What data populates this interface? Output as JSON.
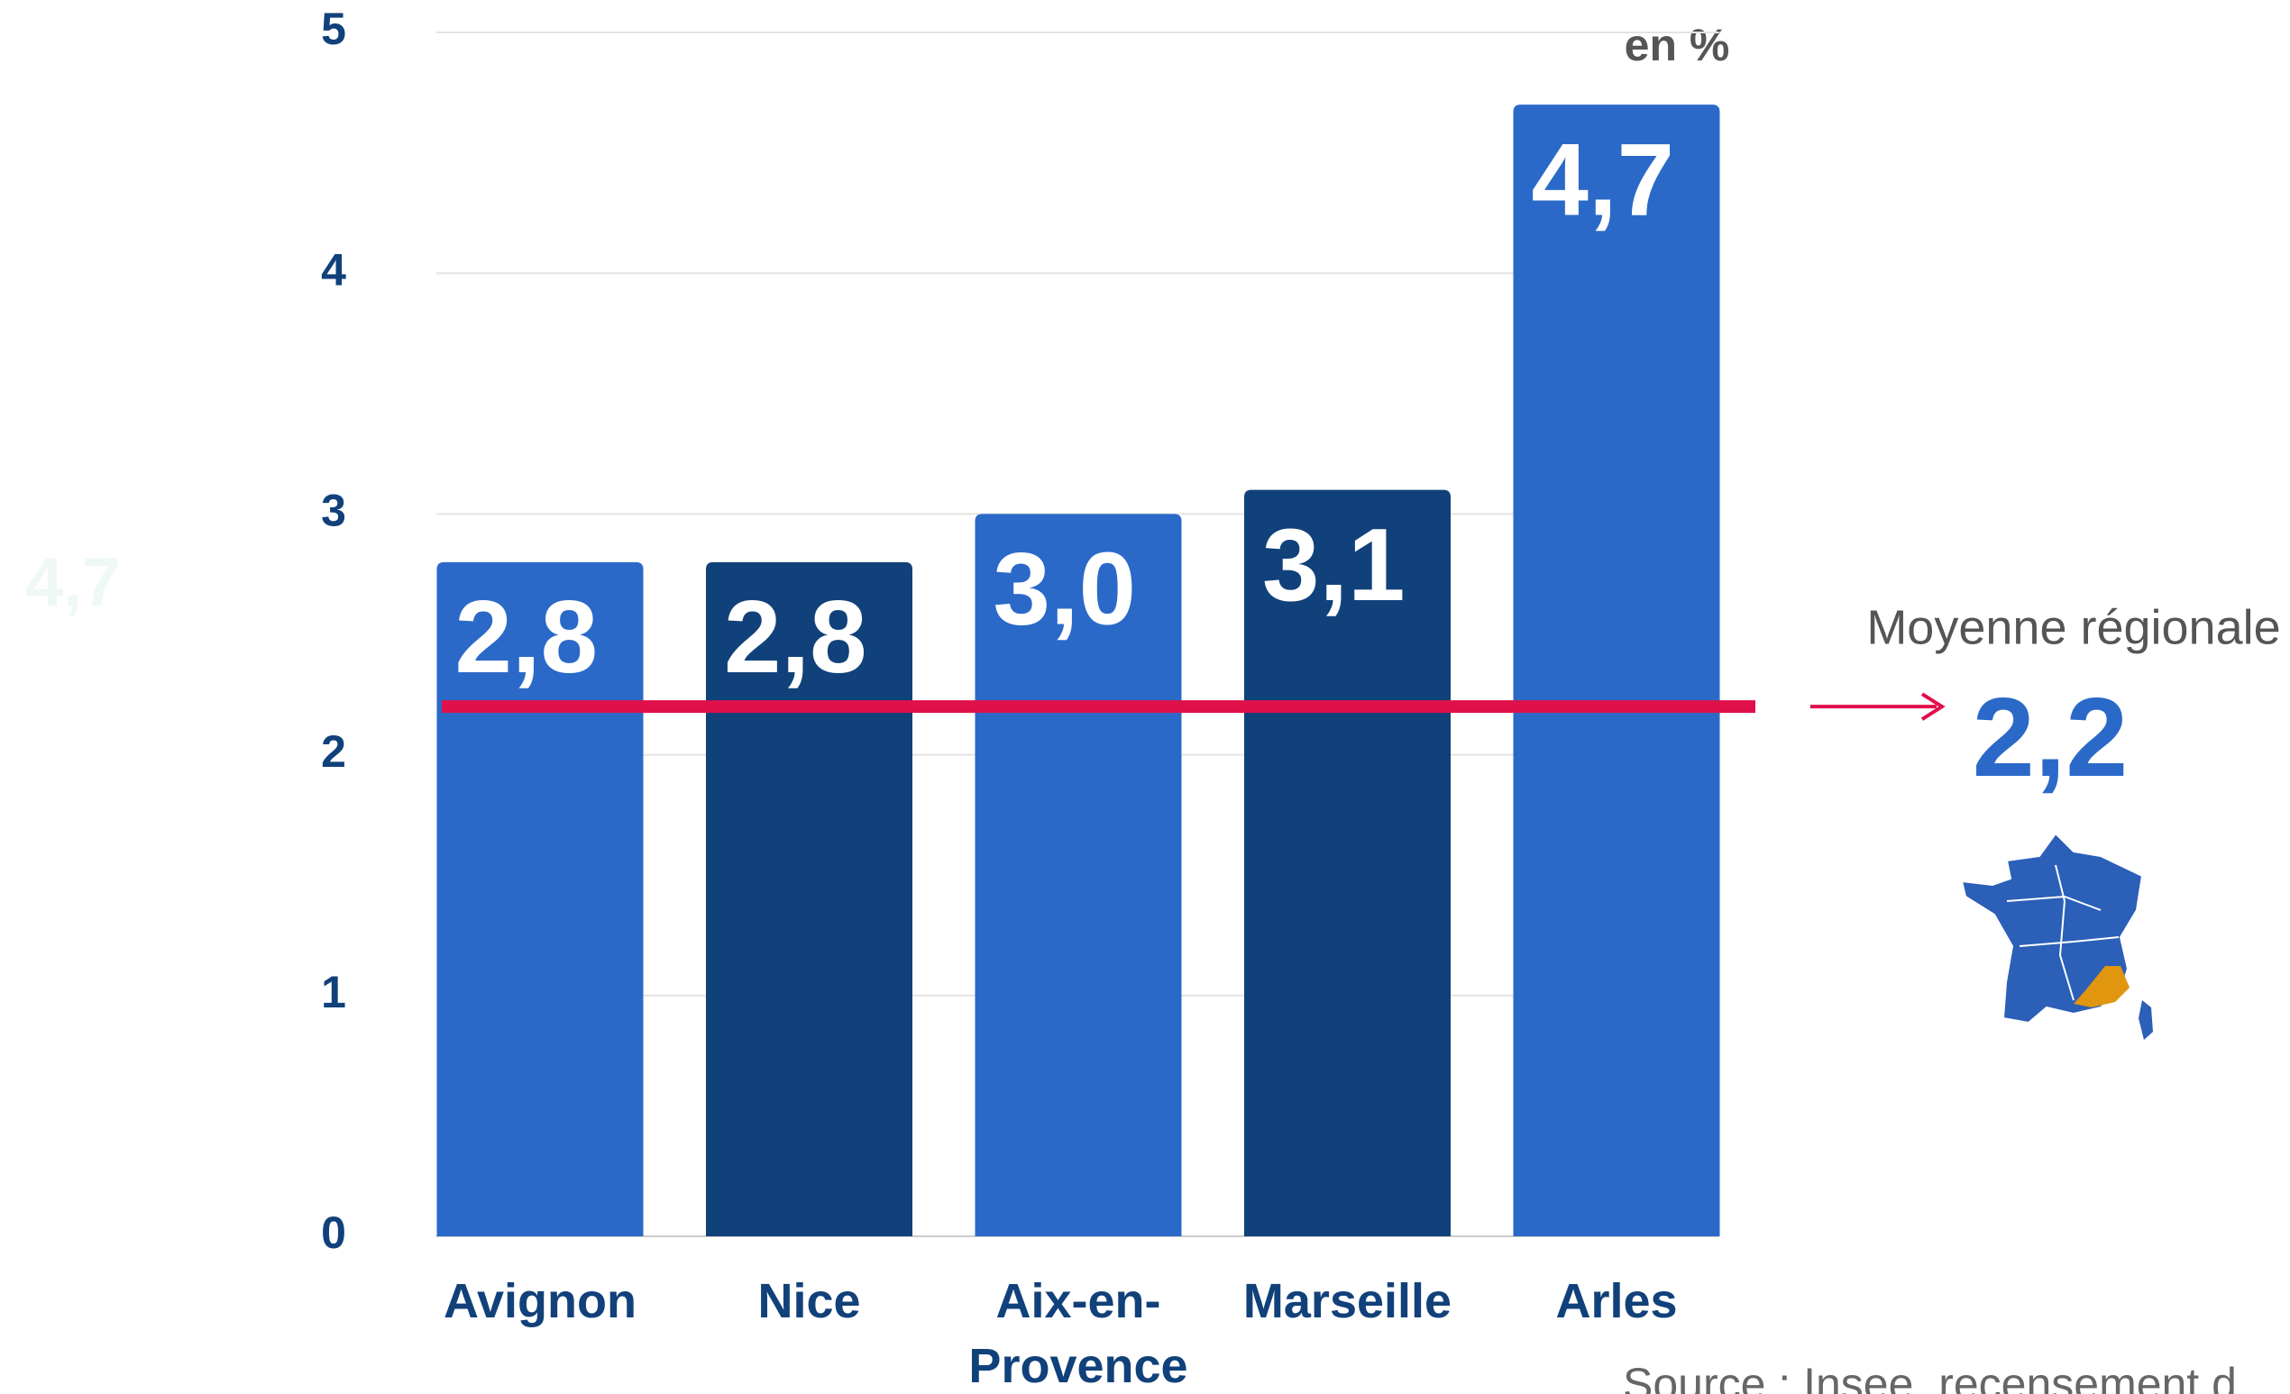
{
  "chart_data": {
    "type": "bar",
    "unit_label": "en %",
    "categories": [
      "Avignon",
      "Nice",
      "Aix-en-Provence",
      "Marseille",
      "Arles"
    ],
    "values": [
      2.8,
      2.8,
      3.0,
      3.1,
      4.7
    ],
    "value_labels": [
      "2,8",
      "2,8",
      "3,0",
      "3,1",
      "4,7"
    ],
    "colors": [
      "#2b69c8",
      "#11417a",
      "#2b69c8",
      "#11417a",
      "#2b69c8"
    ],
    "ylim": [
      0,
      5
    ],
    "yticks": [
      0,
      1,
      2,
      3,
      4,
      5
    ],
    "grid": true,
    "reference_line": {
      "label": "Moyenne régionale",
      "value": 2.2,
      "value_label": "2,2",
      "color": "#e0104a"
    },
    "annotations": [
      "4,7"
    ],
    "source": "Source : Insee, recensement d"
  }
}
